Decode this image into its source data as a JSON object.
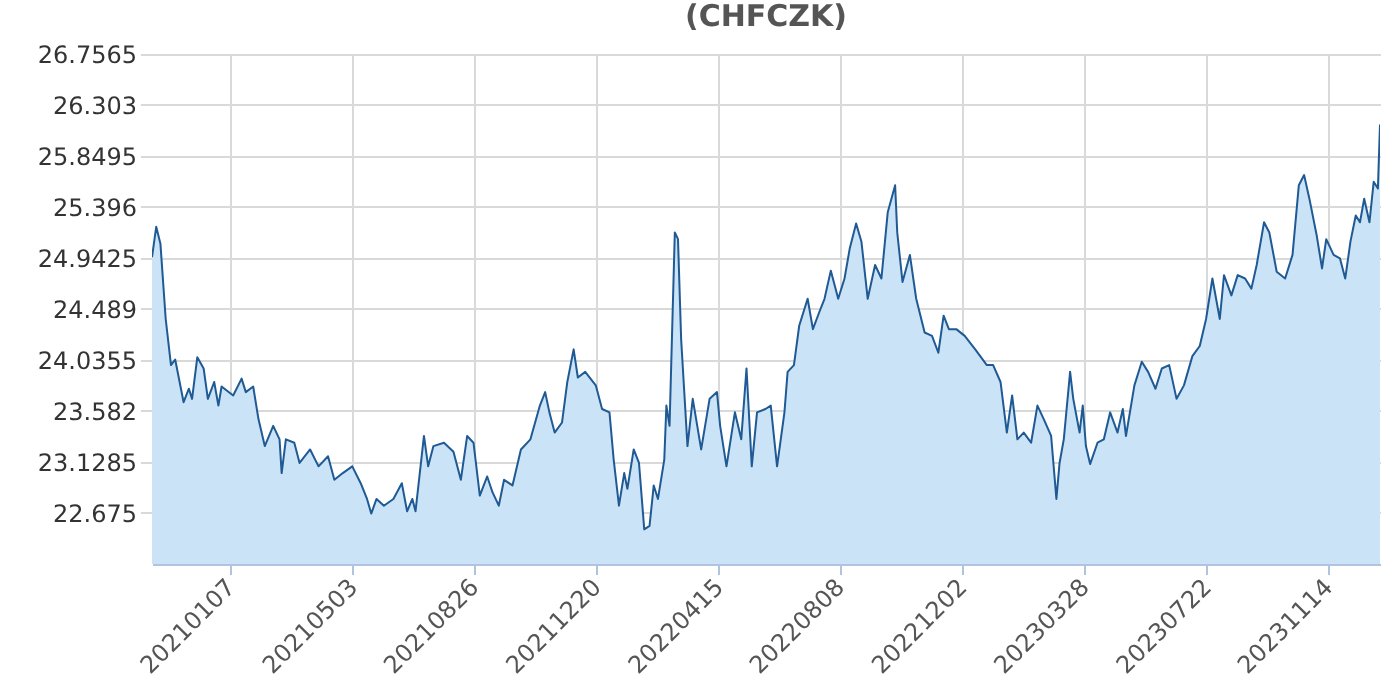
{
  "chart_data": {
    "type": "area",
    "title": "(CHFCZK)",
    "x": [
      "2020-10-25",
      "2020-10-29",
      "2020-11-02",
      "2020-11-07",
      "2020-11-12",
      "2020-11-16",
      "2020-11-24",
      "2020-11-29",
      "2020-12-02",
      "2020-12-07",
      "2020-12-13",
      "2020-12-17",
      "2020-12-23",
      "2020-12-27",
      "2020-12-30",
      "2021-01-10",
      "2021-01-18",
      "2021-01-22",
      "2021-01-29",
      "2021-02-03",
      "2021-02-09",
      "2021-02-17",
      "2021-02-23",
      "2021-02-25",
      "2021-03-01",
      "2021-03-09",
      "2021-03-14",
      "2021-03-24",
      "2021-04-01",
      "2021-04-10",
      "2021-04-16",
      "2021-04-24",
      "2021-05-03",
      "2021-05-11",
      "2021-05-17",
      "2021-05-21",
      "2021-05-26",
      "2021-06-02",
      "2021-06-11",
      "2021-06-19",
      "2021-06-24",
      "2021-06-29",
      "2021-07-02",
      "2021-07-10",
      "2021-07-14",
      "2021-07-19",
      "2021-07-29",
      "2021-08-07",
      "2021-08-14",
      "2021-08-20",
      "2021-08-26",
      "2021-09-01",
      "2021-09-08",
      "2021-09-13",
      "2021-09-19",
      "2021-09-24",
      "2021-10-02",
      "2021-10-10",
      "2021-10-19",
      "2021-10-28",
      "2021-11-02",
      "2021-11-06",
      "2021-11-11",
      "2021-11-18",
      "2021-11-23",
      "2021-11-29",
      "2021-12-03",
      "2021-12-10",
      "2021-12-20",
      "2021-12-26",
      "2022-01-02",
      "2022-01-06",
      "2022-01-11",
      "2022-01-16",
      "2022-01-19",
      "2022-01-25",
      "2022-01-30",
      "2022-02-04",
      "2022-02-09",
      "2022-02-13",
      "2022-02-17",
      "2022-02-23",
      "2022-02-25",
      "2022-02-28",
      "2022-03-05",
      "2022-03-08",
      "2022-03-11",
      "2022-03-17",
      "2022-03-22",
      "2022-03-30",
      "2022-04-07",
      "2022-04-14",
      "2022-04-17",
      "2022-04-23",
      "2022-05-01",
      "2022-05-07",
      "2022-05-12",
      "2022-05-17",
      "2022-05-22",
      "2022-05-30",
      "2022-06-04",
      "2022-06-10",
      "2022-06-17",
      "2022-06-20",
      "2022-06-26",
      "2022-07-01",
      "2022-07-09",
      "2022-07-14",
      "2022-07-20",
      "2022-07-25",
      "2022-07-31",
      "2022-08-07",
      "2022-08-13",
      "2022-08-18",
      "2022-08-24",
      "2022-08-29",
      "2022-09-04",
      "2022-09-11",
      "2022-09-17",
      "2022-09-23",
      "2022-09-30",
      "2022-10-02",
      "2022-10-07",
      "2022-10-14",
      "2022-10-20",
      "2022-10-28",
      "2022-11-04",
      "2022-11-10",
      "2022-11-15",
      "2022-11-20",
      "2022-11-27",
      "2022-12-05",
      "2022-12-15",
      "2022-12-26",
      "2023-01-01",
      "2023-01-08",
      "2023-01-14",
      "2023-01-19",
      "2023-01-24",
      "2023-01-30",
      "2023-02-06",
      "2023-02-12",
      "2023-02-18",
      "2023-02-25",
      "2023-03-02",
      "2023-03-05",
      "2023-03-09",
      "2023-03-15",
      "2023-03-18",
      "2023-03-24",
      "2023-03-27",
      "2023-03-30",
      "2023-04-03",
      "2023-04-10",
      "2023-04-16",
      "2023-04-22",
      "2023-04-29",
      "2023-05-04",
      "2023-05-07",
      "2023-05-15",
      "2023-05-22",
      "2023-05-28",
      "2023-06-04",
      "2023-06-10",
      "2023-06-17",
      "2023-06-24",
      "2023-07-01",
      "2023-07-09",
      "2023-07-16",
      "2023-07-22",
      "2023-07-28",
      "2023-08-04",
      "2023-08-08",
      "2023-08-15",
      "2023-08-21",
      "2023-08-28",
      "2023-09-03",
      "2023-09-08",
      "2023-09-15",
      "2023-09-20",
      "2023-09-27",
      "2023-10-05",
      "2023-10-12",
      "2023-10-18",
      "2023-10-23",
      "2023-10-28",
      "2023-11-04",
      "2023-11-09",
      "2023-11-13",
      "2023-11-20",
      "2023-11-26",
      "2023-12-01",
      "2023-12-06",
      "2023-12-11",
      "2023-12-15",
      "2023-12-19",
      "2023-12-24",
      "2023-12-28",
      "2024-01-01",
      "2024-01-03"
    ],
    "series": [
      {
        "color": "#1f5a94",
        "values": [
          24.95,
          25.22,
          25.07,
          24.4,
          23.99,
          24.04,
          23.66,
          23.78,
          23.69,
          24.06,
          23.96,
          23.69,
          23.84,
          23.63,
          23.8,
          23.72,
          23.87,
          23.75,
          23.8,
          23.51,
          23.27,
          23.45,
          23.33,
          23.03,
          23.33,
          23.3,
          23.12,
          23.24,
          23.09,
          23.18,
          22.97,
          23.03,
          23.09,
          22.94,
          22.8,
          22.67,
          22.8,
          22.74,
          22.8,
          22.94,
          22.69,
          22.8,
          22.69,
          23.36,
          23.09,
          23.27,
          23.3,
          23.22,
          22.97,
          23.36,
          23.3,
          22.83,
          23.0,
          22.86,
          22.74,
          22.97,
          22.92,
          23.24,
          23.33,
          23.63,
          23.75,
          23.57,
          23.39,
          23.48,
          23.84,
          24.13,
          23.88,
          23.93,
          23.81,
          23.6,
          23.57,
          23.15,
          22.74,
          23.03,
          22.89,
          23.24,
          23.12,
          22.53,
          22.56,
          22.92,
          22.8,
          23.15,
          23.63,
          23.45,
          25.17,
          25.11,
          24.22,
          23.27,
          23.69,
          23.24,
          23.69,
          23.75,
          23.45,
          23.09,
          23.57,
          23.33,
          23.96,
          23.09,
          23.57,
          23.6,
          23.63,
          23.09,
          23.57,
          23.93,
          23.99,
          24.34,
          24.58,
          24.31,
          24.46,
          24.58,
          24.83,
          24.58,
          24.76,
          25.03,
          25.25,
          25.09,
          24.58,
          24.88,
          24.76,
          25.35,
          25.59,
          25.17,
          24.73,
          24.97,
          24.58,
          24.28,
          24.25,
          24.1,
          24.43,
          24.31,
          24.31,
          24.25,
          24.13,
          23.99,
          23.99,
          23.84,
          23.39,
          23.72,
          23.33,
          23.39,
          23.3,
          23.63,
          23.51,
          23.36,
          22.8,
          23.12,
          23.33,
          23.93,
          23.69,
          23.39,
          23.63,
          23.27,
          23.11,
          23.3,
          23.33,
          23.57,
          23.39,
          23.6,
          23.36,
          23.81,
          24.02,
          23.93,
          23.78,
          23.96,
          23.99,
          23.69,
          23.81,
          24.07,
          24.16,
          24.4,
          24.76,
          24.4,
          24.79,
          24.61,
          24.79,
          24.76,
          24.67,
          24.88,
          25.26,
          25.17,
          24.82,
          24.76,
          24.97,
          25.59,
          25.68,
          25.47,
          25.14,
          24.85,
          25.11,
          24.97,
          24.94,
          24.76,
          25.09,
          25.32,
          25.26,
          25.47,
          25.26,
          25.62,
          25.56,
          26.13
        ]
      }
    ],
    "xlim": [
      "2020-10-25",
      "2024-01-03"
    ],
    "xticks": [
      {
        "value": "2021-01-07",
        "label": "20210107"
      },
      {
        "value": "2021-05-03",
        "label": "20210503"
      },
      {
        "value": "2021-08-26",
        "label": "20210826"
      },
      {
        "value": "2021-12-20",
        "label": "20211220"
      },
      {
        "value": "2022-04-15",
        "label": "20220415"
      },
      {
        "value": "2022-08-08",
        "label": "20220808"
      },
      {
        "value": "2022-12-02",
        "label": "20221202"
      },
      {
        "value": "2023-03-28",
        "label": "20230328"
      },
      {
        "value": "2023-07-22",
        "label": "20230722"
      },
      {
        "value": "2023-11-14",
        "label": "20231114"
      }
    ],
    "ylim": [
      22.2215,
      26.7565
    ],
    "yticks": [
      22.675,
      23.1285,
      23.582,
      24.0355,
      24.489,
      24.9425,
      25.396,
      25.8495,
      26.303,
      26.7565
    ],
    "grid": true
  }
}
